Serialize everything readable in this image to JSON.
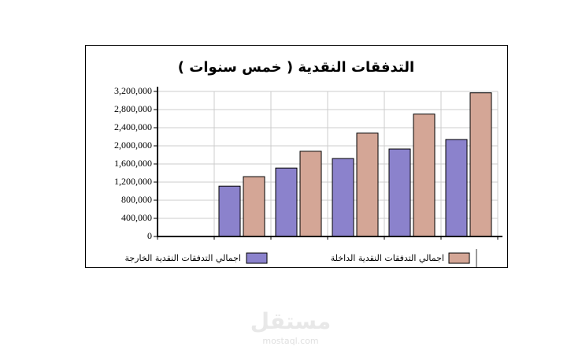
{
  "chart_data": {
    "type": "bar",
    "title": "التدفقات النقدية ( خمس سنوات )",
    "categories": [
      null,
      null,
      null,
      null,
      null,
      null
    ],
    "series": [
      {
        "name": "اجمالي التدفقات النقدية الخارجة",
        "color": "#8b82cc",
        "values": [
          null,
          1110000,
          1510000,
          1720000,
          1930000,
          2140000
        ]
      },
      {
        "name": "اجمالي التدفقات النقدية الداخلة",
        "color": "#d4a696",
        "values": [
          null,
          1320000,
          1880000,
          2280000,
          2700000,
          3170000
        ]
      }
    ],
    "ylim": [
      0,
      3200000
    ],
    "yticks": [
      0,
      {
        "value": 400000,
        "label": "400,000"
      },
      {
        "value": 800000,
        "label": "800,000"
      },
      {
        "value": 1200000,
        "label": "1,200,000"
      },
      {
        "value": 1600000,
        "label": "1,600,000"
      },
      {
        "value": 2000000,
        "label": "2,000,000"
      },
      {
        "value": 2400000,
        "label": "2,400,000"
      },
      {
        "value": 2800000,
        "label": "2,800,000"
      },
      {
        "value": 3200000,
        "label": "3,200,000"
      }
    ],
    "grid": true
  },
  "watermark": {
    "text": "مستقل",
    "url": "mostaql.com"
  }
}
